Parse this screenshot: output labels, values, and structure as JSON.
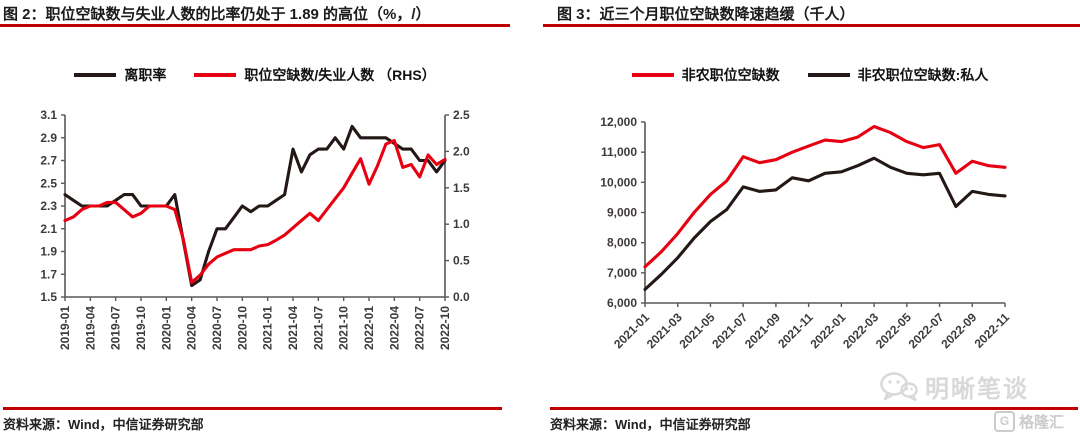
{
  "colors": {
    "red_line": "#e60012",
    "black_line": "#231815",
    "rule_red": "#c00000",
    "axis_gray": "#595757",
    "watermark_gray": "#d9d9d9"
  },
  "panels": [
    {
      "title": "图 2：职位空缺数与失业人数的比率仍处于 1.89 的高位（%，/）",
      "source": "资料来源：Wind，中信证券研究部",
      "legend": [
        {
          "label": "离职率",
          "color": "#231815"
        },
        {
          "label": "职位空缺数/失业人数 （RHS）",
          "color": "#e60012"
        }
      ]
    },
    {
      "title": "图 3：近三个月职位空缺数降速趋缓（千人）",
      "source": "资料来源：Wind，中信证券研究部",
      "legend": [
        {
          "label": "非农职位空缺数",
          "color": "#e60012"
        },
        {
          "label": "非农职位空缺数:私人",
          "color": "#231815"
        }
      ]
    }
  ],
  "watermark": {
    "text": "明晰笔谈",
    "icon": "wechat-bubbles-icon"
  },
  "logo": {
    "text": "格隆汇",
    "icon": "g-badge-icon"
  },
  "chart_data": [
    {
      "type": "line",
      "title": "职位空缺数与失业人数的比率仍处于 1.89 的高位",
      "x_range": [
        "2019-01",
        "2022-10"
      ],
      "x_tick_labels": [
        "2019-01",
        "2019-04",
        "2019-07",
        "2019-10",
        "2020-01",
        "2020-04",
        "2020-07",
        "2020-10",
        "2021-01",
        "2021-04",
        "2021-07",
        "2021-10",
        "2022-01",
        "2022-04",
        "2022-07",
        "2022-10"
      ],
      "x_tick_every": 3,
      "left_axis": {
        "min": 1.5,
        "max": 3.1,
        "ticks": [
          "1.5",
          "1.7",
          "1.9",
          "2.1",
          "2.3",
          "2.5",
          "2.7",
          "2.9",
          "3.1"
        ]
      },
      "right_axis": {
        "min": 0.0,
        "max": 2.5,
        "ticks": [
          "0.0",
          "0.5",
          "1.0",
          "1.5",
          "2.0",
          "2.5"
        ]
      },
      "series": [
        {
          "name": "离职率",
          "axis": "left",
          "color": "#231815",
          "values": [
            2.4,
            2.35,
            2.3,
            2.3,
            2.3,
            2.3,
            2.35,
            2.4,
            2.4,
            2.3,
            2.3,
            2.3,
            2.3,
            2.4,
            2.0,
            1.6,
            1.65,
            1.9,
            2.1,
            2.1,
            2.2,
            2.3,
            2.25,
            2.3,
            2.3,
            2.35,
            2.4,
            2.8,
            2.6,
            2.75,
            2.8,
            2.8,
            2.9,
            2.8,
            3.0,
            2.9,
            2.9,
            2.9,
            2.9,
            2.85,
            2.8,
            2.8,
            2.7,
            2.7,
            2.6,
            2.7
          ]
        },
        {
          "name": "职位空缺数/失业人数 （RHS）",
          "axis": "right",
          "color": "#e60012",
          "values": [
            1.05,
            1.1,
            1.2,
            1.25,
            1.25,
            1.3,
            1.3,
            1.2,
            1.1,
            1.15,
            1.25,
            1.25,
            1.25,
            1.2,
            0.8,
            0.2,
            0.3,
            0.45,
            0.55,
            0.6,
            0.65,
            0.65,
            0.65,
            0.7,
            0.72,
            0.78,
            0.85,
            0.95,
            1.05,
            1.15,
            1.05,
            1.2,
            1.35,
            1.5,
            1.7,
            1.9,
            1.55,
            1.8,
            2.1,
            2.15,
            1.78,
            1.82,
            1.65,
            1.95,
            1.82,
            1.89
          ]
        }
      ]
    },
    {
      "type": "line",
      "title": "近三个月职位空缺数降速趋缓（千人）",
      "x_range": [
        "2021-01",
        "2022-11"
      ],
      "x_tick_labels": [
        "2021-01",
        "2021-03",
        "2021-05",
        "2021-07",
        "2021-09",
        "2021-11",
        "2022-01",
        "2022-03",
        "2022-05",
        "2022-07",
        "2022-09",
        "2022-11"
      ],
      "x_tick_every": 2,
      "left_axis": {
        "min": 6000,
        "max": 12000,
        "ticks": [
          "6,000",
          "7,000",
          "8,000",
          "9,000",
          "10,000",
          "11,000",
          "12,000"
        ]
      },
      "series": [
        {
          "name": "非农职位空缺数",
          "axis": "left",
          "color": "#e60012",
          "values": [
            7200,
            7700,
            8300,
            9000,
            9600,
            10050,
            10850,
            10650,
            10750,
            11000,
            11200,
            11400,
            11350,
            11500,
            11850,
            11650,
            11350,
            11150,
            11250,
            10300,
            10700,
            10550,
            10500
          ]
        },
        {
          "name": "非农职位空缺数:私人",
          "axis": "left",
          "color": "#231815",
          "values": [
            6450,
            6950,
            7500,
            8150,
            8700,
            9100,
            9850,
            9700,
            9750,
            10150,
            10050,
            10300,
            10350,
            10550,
            10800,
            10500,
            10300,
            10250,
            10300,
            9200,
            9700,
            9600,
            9550
          ]
        }
      ]
    }
  ]
}
